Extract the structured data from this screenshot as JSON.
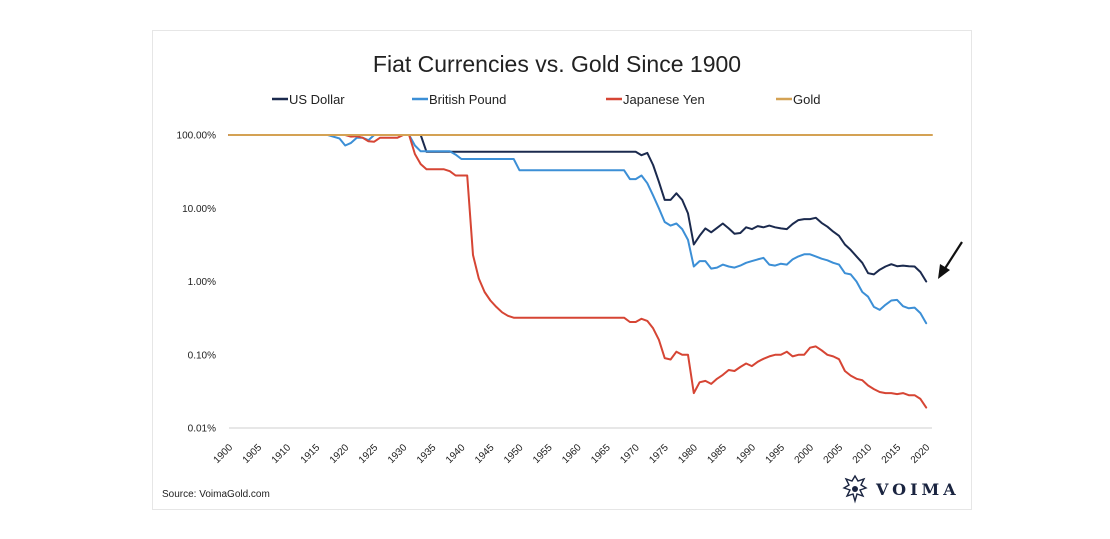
{
  "chart_data": {
    "type": "line",
    "title": "Fiat Currencies vs. Gold Since 1900",
    "xlabel": "",
    "ylabel": "",
    "yscale": "log",
    "ylim": [
      0.01,
      100
    ],
    "xlim": [
      1900,
      2021
    ],
    "y_ticks": [
      {
        "value": 100,
        "label": "100.00%"
      },
      {
        "value": 10,
        "label": "10.00%"
      },
      {
        "value": 1,
        "label": "1.00%"
      },
      {
        "value": 0.1,
        "label": "0.10%"
      },
      {
        "value": 0.01,
        "label": "0.01%"
      }
    ],
    "x_ticks": [
      1900,
      1905,
      1910,
      1915,
      1920,
      1925,
      1930,
      1935,
      1940,
      1945,
      1950,
      1955,
      1960,
      1965,
      1970,
      1975,
      1980,
      1985,
      1990,
      1995,
      2000,
      2005,
      2010,
      2015,
      2020
    ],
    "legend_position": "top",
    "series": [
      {
        "name": "US Dollar",
        "color": "#1b2a4e",
        "points": [
          [
            1900,
            100
          ],
          [
            1933,
            100
          ],
          [
            1934,
            59
          ],
          [
            1970,
            59
          ],
          [
            1971,
            53
          ],
          [
            1972,
            57
          ],
          [
            1973,
            39
          ],
          [
            1974,
            23
          ],
          [
            1975,
            13
          ],
          [
            1976,
            13
          ],
          [
            1977,
            16
          ],
          [
            1978,
            13
          ],
          [
            1979,
            8.5
          ],
          [
            1980,
            3.2
          ],
          [
            1981,
            4.2
          ],
          [
            1982,
            5.3
          ],
          [
            1983,
            4.7
          ],
          [
            1984,
            5.4
          ],
          [
            1985,
            6.2
          ],
          [
            1986,
            5.3
          ],
          [
            1987,
            4.5
          ],
          [
            1988,
            4.6
          ],
          [
            1989,
            5.5
          ],
          [
            1990,
            5.2
          ],
          [
            1991,
            5.7
          ],
          [
            1992,
            5.5
          ],
          [
            1993,
            5.8
          ],
          [
            1994,
            5.5
          ],
          [
            1995,
            5.3
          ],
          [
            1996,
            5.2
          ],
          [
            1997,
            6.1
          ],
          [
            1998,
            6.9
          ],
          [
            1999,
            7.1
          ],
          [
            2000,
            7.1
          ],
          [
            2001,
            7.4
          ],
          [
            2002,
            6.3
          ],
          [
            2003,
            5.6
          ],
          [
            2004,
            4.8
          ],
          [
            2005,
            4.2
          ],
          [
            2006,
            3.2
          ],
          [
            2007,
            2.7
          ],
          [
            2008,
            2.2
          ],
          [
            2009,
            1.8
          ],
          [
            2010,
            1.3
          ],
          [
            2011,
            1.25
          ],
          [
            2012,
            1.45
          ],
          [
            2013,
            1.6
          ],
          [
            2014,
            1.72
          ],
          [
            2015,
            1.62
          ],
          [
            2016,
            1.65
          ],
          [
            2017,
            1.62
          ],
          [
            2018,
            1.6
          ],
          [
            2019,
            1.35
          ],
          [
            2020,
            1.0
          ]
        ]
      },
      {
        "name": "British Pound",
        "color": "#3c8fd6",
        "points": [
          [
            1900,
            100
          ],
          [
            1917,
            100
          ],
          [
            1919,
            90
          ],
          [
            1920,
            72
          ],
          [
            1921,
            78
          ],
          [
            1922,
            92
          ],
          [
            1923,
            92
          ],
          [
            1924,
            85
          ],
          [
            1925,
            100
          ],
          [
            1931,
            100
          ],
          [
            1932,
            72
          ],
          [
            1933,
            60
          ],
          [
            1938,
            60
          ],
          [
            1939,
            54
          ],
          [
            1940,
            47
          ],
          [
            1949,
            47
          ],
          [
            1950,
            33
          ],
          [
            1966,
            33
          ],
          [
            1968,
            33
          ],
          [
            1969,
            25
          ],
          [
            1970,
            25
          ],
          [
            1971,
            28
          ],
          [
            1972,
            22
          ],
          [
            1973,
            15
          ],
          [
            1974,
            10
          ],
          [
            1975,
            6.5
          ],
          [
            1976,
            5.8
          ],
          [
            1977,
            6.2
          ],
          [
            1978,
            5.2
          ],
          [
            1979,
            3.7
          ],
          [
            1980,
            1.6
          ],
          [
            1981,
            1.9
          ],
          [
            1982,
            1.9
          ],
          [
            1983,
            1.5
          ],
          [
            1984,
            1.55
          ],
          [
            1985,
            1.7
          ],
          [
            1986,
            1.6
          ],
          [
            1987,
            1.55
          ],
          [
            1988,
            1.65
          ],
          [
            1989,
            1.8
          ],
          [
            1990,
            1.9
          ],
          [
            1991,
            2.0
          ],
          [
            1992,
            2.1
          ],
          [
            1993,
            1.7
          ],
          [
            1994,
            1.65
          ],
          [
            1995,
            1.75
          ],
          [
            1996,
            1.7
          ],
          [
            1997,
            2.0
          ],
          [
            1998,
            2.2
          ],
          [
            1999,
            2.35
          ],
          [
            2000,
            2.35
          ],
          [
            2001,
            2.2
          ],
          [
            2002,
            2.05
          ],
          [
            2003,
            1.95
          ],
          [
            2004,
            1.8
          ],
          [
            2005,
            1.7
          ],
          [
            2006,
            1.3
          ],
          [
            2007,
            1.25
          ],
          [
            2008,
            1.0
          ],
          [
            2009,
            0.72
          ],
          [
            2010,
            0.62
          ],
          [
            2011,
            0.45
          ],
          [
            2012,
            0.41
          ],
          [
            2013,
            0.48
          ],
          [
            2014,
            0.55
          ],
          [
            2015,
            0.56
          ],
          [
            2016,
            0.46
          ],
          [
            2017,
            0.43
          ],
          [
            2018,
            0.44
          ],
          [
            2019,
            0.37
          ],
          [
            2020,
            0.27
          ]
        ]
      },
      {
        "name": "Japanese Yen",
        "color": "#d64534",
        "points": [
          [
            1900,
            100
          ],
          [
            1920,
            100
          ],
          [
            1921,
            95
          ],
          [
            1922,
            96
          ],
          [
            1923,
            92
          ],
          [
            1924,
            82
          ],
          [
            1925,
            81
          ],
          [
            1926,
            92
          ],
          [
            1929,
            92
          ],
          [
            1930,
            100
          ],
          [
            1931,
            100
          ],
          [
            1932,
            55
          ],
          [
            1933,
            40
          ],
          [
            1934,
            34
          ],
          [
            1937,
            34
          ],
          [
            1938,
            32
          ],
          [
            1939,
            28
          ],
          [
            1941,
            28
          ],
          [
            1942,
            2.3
          ],
          [
            1943,
            1.1
          ],
          [
            1944,
            0.72
          ],
          [
            1945,
            0.55
          ],
          [
            1946,
            0.45
          ],
          [
            1947,
            0.38
          ],
          [
            1948,
            0.34
          ],
          [
            1949,
            0.32
          ],
          [
            1966,
            0.32
          ],
          [
            1968,
            0.32
          ],
          [
            1969,
            0.28
          ],
          [
            1970,
            0.28
          ],
          [
            1971,
            0.31
          ],
          [
            1972,
            0.29
          ],
          [
            1973,
            0.23
          ],
          [
            1974,
            0.16
          ],
          [
            1975,
            0.09
          ],
          [
            1976,
            0.086
          ],
          [
            1977,
            0.11
          ],
          [
            1978,
            0.1
          ],
          [
            1979,
            0.1
          ],
          [
            1980,
            0.03
          ],
          [
            1981,
            0.042
          ],
          [
            1982,
            0.044
          ],
          [
            1983,
            0.04
          ],
          [
            1984,
            0.047
          ],
          [
            1985,
            0.053
          ],
          [
            1986,
            0.062
          ],
          [
            1987,
            0.06
          ],
          [
            1988,
            0.068
          ],
          [
            1989,
            0.076
          ],
          [
            1990,
            0.07
          ],
          [
            1991,
            0.08
          ],
          [
            1992,
            0.088
          ],
          [
            1993,
            0.095
          ],
          [
            1994,
            0.1
          ],
          [
            1995,
            0.1
          ],
          [
            1996,
            0.11
          ],
          [
            1997,
            0.095
          ],
          [
            1998,
            0.1
          ],
          [
            1999,
            0.1
          ],
          [
            2000,
            0.125
          ],
          [
            2001,
            0.13
          ],
          [
            2002,
            0.115
          ],
          [
            2003,
            0.1
          ],
          [
            2004,
            0.095
          ],
          [
            2005,
            0.087
          ],
          [
            2006,
            0.06
          ],
          [
            2007,
            0.052
          ],
          [
            2008,
            0.047
          ],
          [
            2009,
            0.045
          ],
          [
            2010,
            0.038
          ],
          [
            2011,
            0.034
          ],
          [
            2012,
            0.031
          ],
          [
            2013,
            0.03
          ],
          [
            2014,
            0.03
          ],
          [
            2015,
            0.029
          ],
          [
            2016,
            0.03
          ],
          [
            2017,
            0.028
          ],
          [
            2018,
            0.028
          ],
          [
            2019,
            0.025
          ],
          [
            2020,
            0.019
          ]
        ]
      },
      {
        "name": "Gold",
        "color": "#d4a254",
        "points": [
          [
            1900,
            100
          ],
          [
            2021,
            100
          ]
        ]
      }
    ],
    "annotations": [
      {
        "type": "arrow",
        "points_to": {
          "x": 2020,
          "y": 1.0
        }
      }
    ]
  },
  "source": "Source: VoimaGold.com",
  "brand": {
    "name": "VOIMA",
    "logo_icon": "voima-crest-icon",
    "arrow_icon": "annotation-arrow-icon"
  }
}
